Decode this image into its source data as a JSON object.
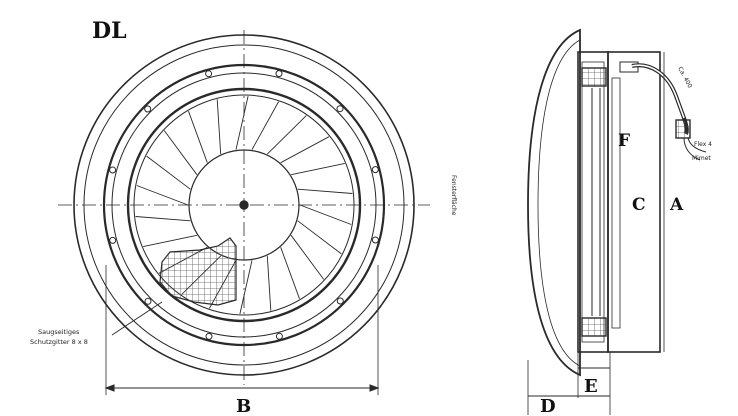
{
  "front_view": {
    "title": "DL",
    "dim_label": "B",
    "callout_line1": "Saugseitiges",
    "callout_line2": "Schutzgitter 8 x 8",
    "side_note": "Fensterfläche"
  },
  "side_view": {
    "labels": {
      "A": "A",
      "C": "C",
      "D": "D",
      "E": "E",
      "F": "F"
    },
    "cable_note_1": "Ca. 400",
    "cable_note_2": "Flex 4",
    "cable_note_3": "Mimet"
  },
  "colors": {
    "line": "#2a2a2a",
    "hatch": "#555555",
    "background": "#ffffff"
  }
}
